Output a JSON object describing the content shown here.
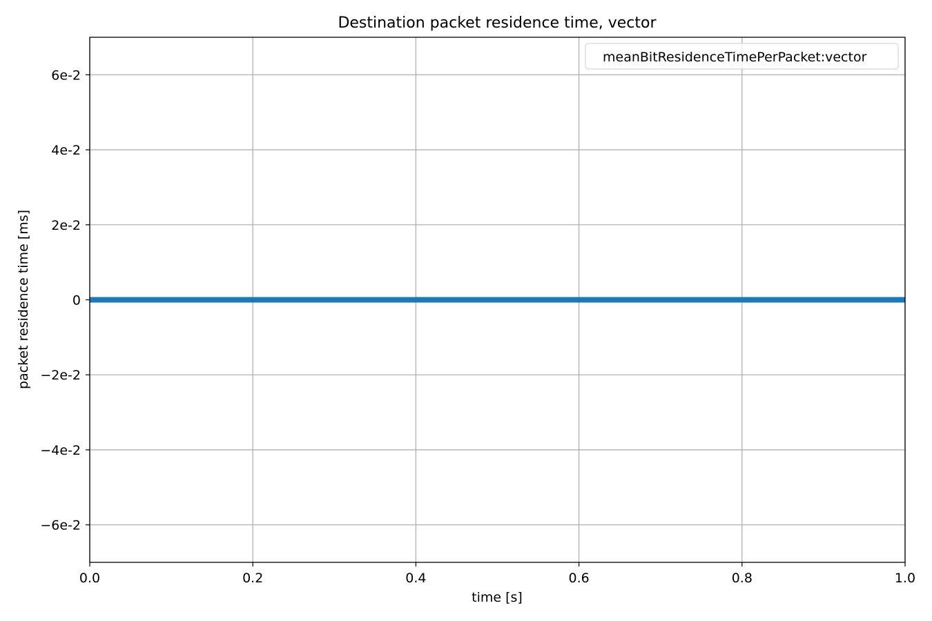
{
  "chart_data": {
    "type": "line",
    "title": "Destination packet residence time, vector",
    "xlabel": "time [s]",
    "ylabel": "packet residence time [ms]",
    "xlim": [
      0.0,
      1.0
    ],
    "ylim": [
      -0.07,
      0.07
    ],
    "x_ticks": [
      0.0,
      0.2,
      0.4,
      0.6,
      0.8,
      1.0
    ],
    "x_tick_labels": [
      "0.0",
      "0.2",
      "0.4",
      "0.6",
      "0.8",
      "1.0"
    ],
    "y_ticks": [
      -0.06,
      -0.04,
      -0.02,
      0,
      0.02,
      0.04,
      0.06
    ],
    "y_tick_labels": [
      "−6e-2",
      "−4e-2",
      "−2e-2",
      "0",
      "2e-2",
      "4e-2",
      "6e-2"
    ],
    "grid": true,
    "legend_position": "top-right",
    "series": [
      {
        "name": "meanBitResidenceTimePerPacket:vector",
        "color": "#1f77b4",
        "x": [
          0.0,
          1.0
        ],
        "y": [
          0,
          0
        ]
      }
    ]
  }
}
